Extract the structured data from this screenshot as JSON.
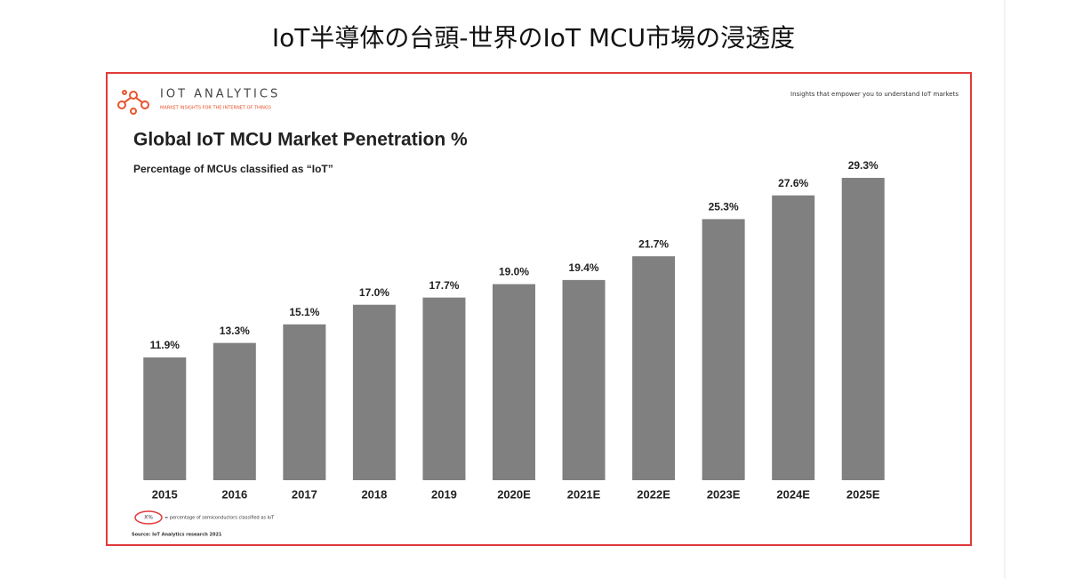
{
  "page_title": "IoT半導体の台頭-世界のIoT MCU市場の浸透度",
  "chart_data": {
    "type": "bar",
    "brand": "IOT ANALYTICS",
    "brand_tagline": "MARKET INSIGHTS FOR THE INTERNET OF THINGS",
    "tagline": "Insights that empower you to understand IoT markets",
    "title": "Global IoT MCU Market Penetration %",
    "subtitle": "Percentage of MCUs classified as “IoT”",
    "categories": [
      "2015",
      "2016",
      "2017",
      "2018",
      "2019",
      "2020E",
      "2021E",
      "2022E",
      "2023E",
      "2024E",
      "2025E"
    ],
    "values": [
      11.9,
      13.3,
      15.1,
      17.0,
      17.7,
      19.0,
      19.4,
      21.7,
      25.3,
      27.6,
      29.3
    ],
    "value_labels": [
      "11.9%",
      "13.3%",
      "15.1%",
      "17.0%",
      "17.7%",
      "19.0%",
      "19.4%",
      "21.7%",
      "25.3%",
      "27.6%",
      "29.3%"
    ],
    "color": "#808080",
    "legend_symbol": "X%",
    "legend_text": "= percentage of semiconductors classified as IoT",
    "source": "Source: IoT Analytics research 2021"
  }
}
